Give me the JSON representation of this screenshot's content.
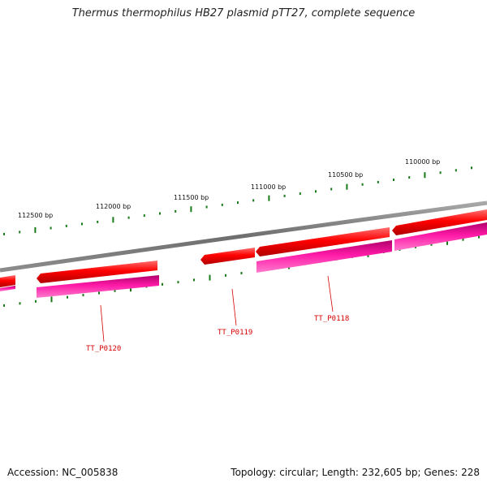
{
  "title": "Thermus thermophilus HB27 plasmid pTT27, complete sequence",
  "footer": {
    "accession": "Accession: NC_005838",
    "summary": "Topology: circular; Length: 232,605 bp; Genes: 228"
  },
  "colors": {
    "backbone": "#7a7a7a",
    "gene": "#ff0000",
    "cds": "#ff1aa8",
    "tick": "#1a7a1a",
    "gene_label": "#d40000"
  },
  "scale_labels": [
    "112500 bp",
    "112000 bp",
    "111500 bp",
    "111000 bp",
    "110500 bp",
    "110000 bp"
  ],
  "gene_labels": [
    "TT_P0120",
    "TT_P0119",
    "TT_P0118"
  ]
}
